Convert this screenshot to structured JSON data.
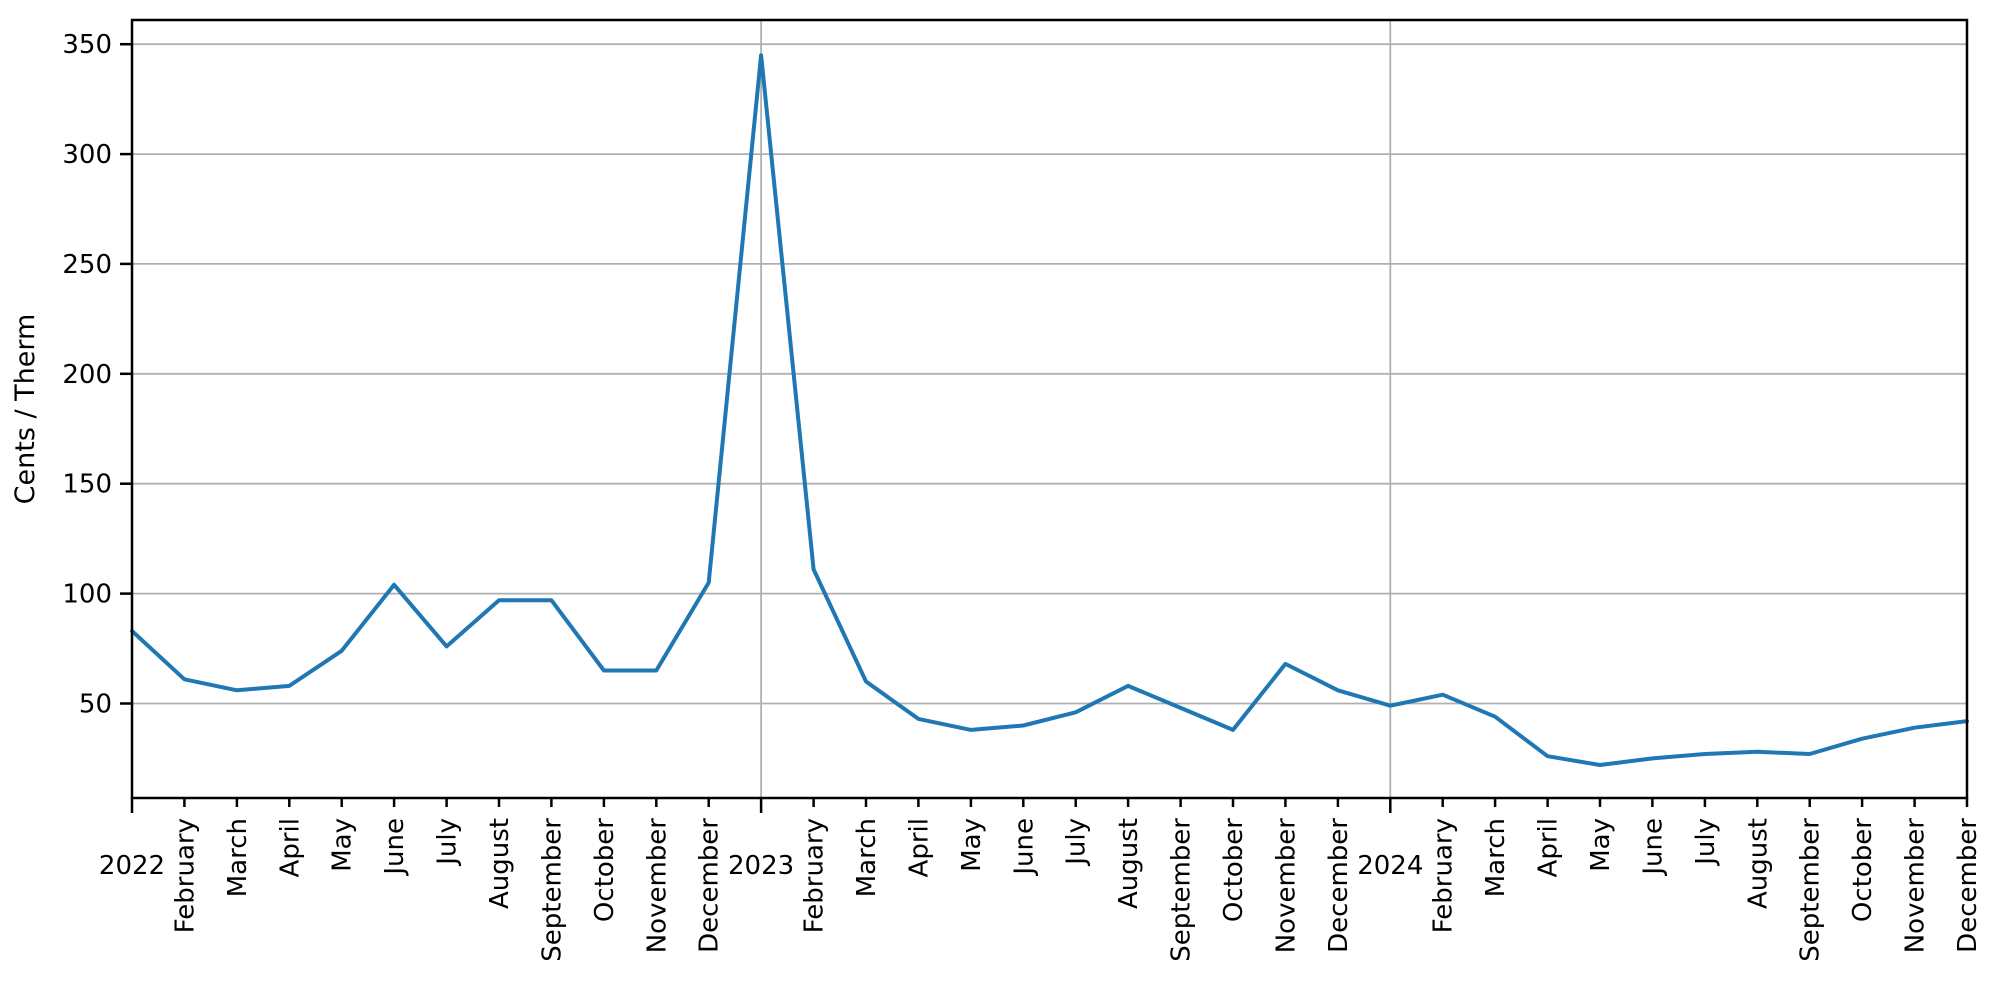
{
  "figure": {
    "background": "#ffffff"
  },
  "chart_data": {
    "type": "line",
    "title": "",
    "xlabel": "",
    "ylabel": "Cents / Therm",
    "legend": "none",
    "grid": "horizontal gridlines at y ticks; vertical gridlines at year boundaries",
    "x_labels": [
      "2022",
      "February",
      "March",
      "April",
      "May",
      "June",
      "July",
      "August",
      "September",
      "October",
      "November",
      "December",
      "2023",
      "February",
      "March",
      "April",
      "May",
      "June",
      "July",
      "August",
      "September",
      "October",
      "November",
      "December",
      "2024",
      "February",
      "March",
      "April",
      "May",
      "June",
      "July",
      "August",
      "September",
      "October",
      "November",
      "December"
    ],
    "values": [
      83,
      61,
      56,
      58,
      74,
      104,
      76,
      97,
      97,
      65,
      65,
      105,
      345,
      111,
      60,
      43,
      38,
      40,
      46,
      58,
      48,
      38,
      68,
      56,
      49,
      54,
      44,
      26,
      22,
      25,
      27,
      28,
      27,
      34,
      39,
      42
    ],
    "y_ticks": [
      50,
      100,
      150,
      200,
      250,
      300,
      350
    ],
    "ylim": [
      7,
      361
    ],
    "line_color": "#1f77b4",
    "grid_color": "#b0b0b0",
    "axis_color": "#000000"
  }
}
